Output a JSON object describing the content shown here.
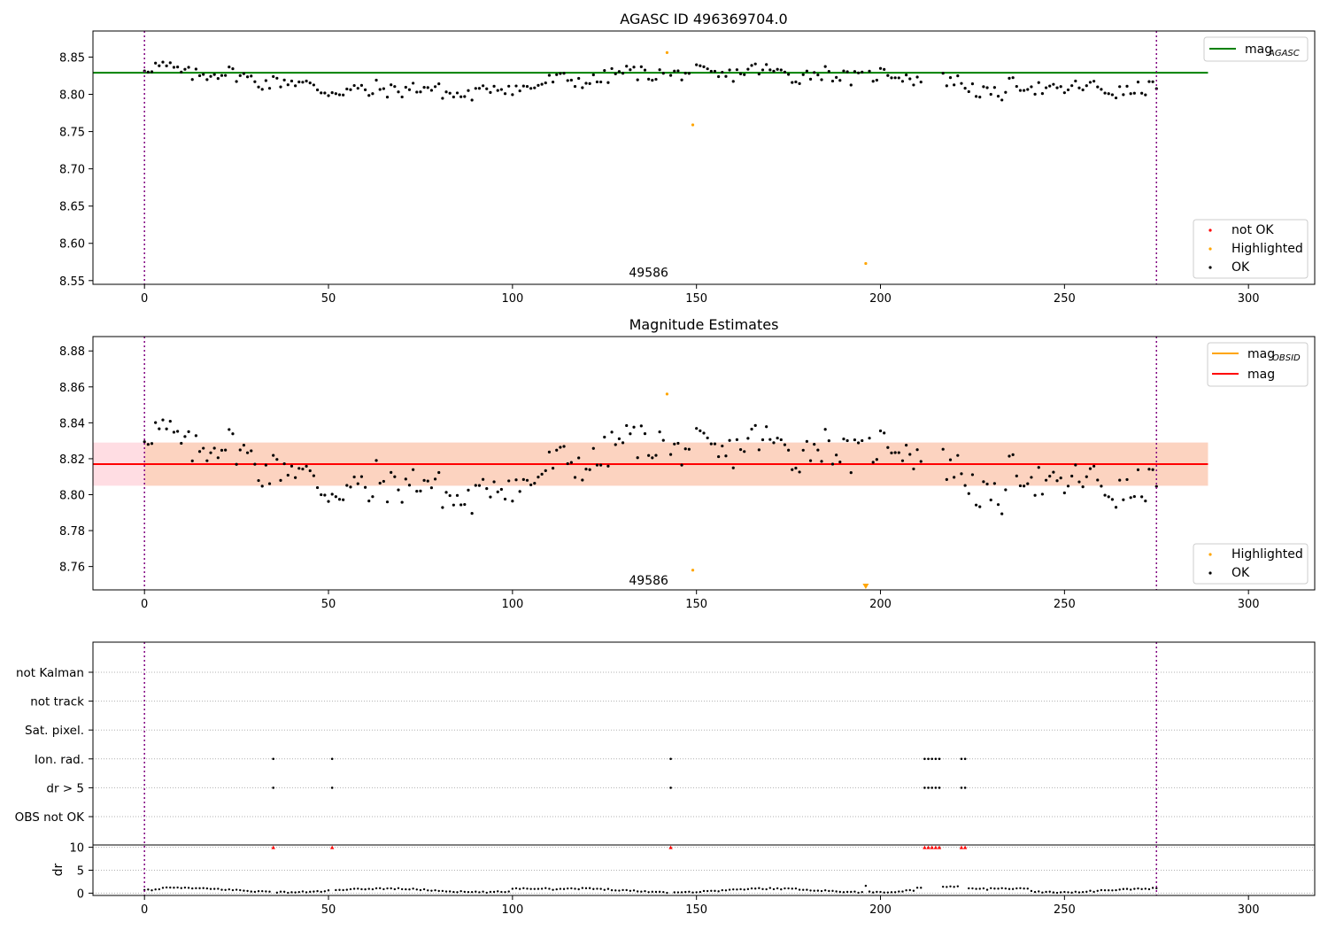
{
  "chart_data": [
    {
      "type": "scatter",
      "title": "AGASC ID 496369704.0",
      "xlim": [
        -14,
        318
      ],
      "ylim": [
        8.545,
        8.885
      ],
      "xticks": [
        0,
        50,
        100,
        150,
        200,
        250,
        300
      ],
      "yticks": [
        8.55,
        8.6,
        8.65,
        8.7,
        8.75,
        8.8,
        8.85
      ],
      "ytick_labels": [
        "8.55",
        "8.60",
        "8.65",
        "8.70",
        "8.75",
        "8.80",
        "8.85"
      ],
      "vlines": [
        0,
        275
      ],
      "annotation": {
        "text": "49586",
        "x": 137,
        "y": 8.555
      },
      "hline": {
        "name": "mag_AGASC",
        "y": 8.829,
        "x_range": [
          -14,
          289
        ],
        "color": "#008000"
      },
      "legend_top": [
        {
          "label": "mag",
          "sub": "AGASC",
          "color": "#008000"
        }
      ],
      "legend_bottom": [
        {
          "label": "not OK",
          "color": "#ff0000"
        },
        {
          "label": "Highlighted",
          "color": "#ffa500"
        },
        {
          "label": "OK",
          "color": "#000000"
        }
      ],
      "highlighted": [
        [
          142,
          8.856
        ],
        [
          149,
          8.759
        ],
        [
          196,
          8.573
        ]
      ],
      "ok_segments": [
        {
          "x0": 0,
          "x1": 30,
          "y0": 8.836,
          "y1": 8.822
        },
        {
          "x0": 31,
          "x1": 62,
          "y0": 8.82,
          "y1": 8.8
        },
        {
          "x0": 63,
          "x1": 92,
          "y0": 8.81,
          "y1": 8.8
        },
        {
          "x0": 93,
          "x1": 141,
          "y0": 8.806,
          "y1": 8.832
        },
        {
          "x0": 143,
          "x1": 175,
          "y0": 8.825,
          "y1": 8.832
        },
        {
          "x0": 176,
          "x1": 211,
          "y0": 8.826,
          "y1": 8.824
        },
        {
          "x0": 217,
          "x1": 233,
          "y0": 8.818,
          "y1": 8.8
        },
        {
          "x0": 234,
          "x1": 275,
          "y0": 8.81,
          "y1": 8.805
        }
      ]
    },
    {
      "type": "scatter",
      "title": "Magnitude Estimates",
      "xlim": [
        -14,
        318
      ],
      "ylim": [
        8.747,
        8.888
      ],
      "xticks": [
        0,
        50,
        100,
        150,
        200,
        250,
        300
      ],
      "yticks": [
        8.76,
        8.78,
        8.8,
        8.82,
        8.84,
        8.86,
        8.88
      ],
      "ytick_labels": [
        "8.76",
        "8.78",
        "8.80",
        "8.82",
        "8.84",
        "8.86",
        "8.88"
      ],
      "vlines": [
        0,
        275
      ],
      "annotation": {
        "text": "49586",
        "x": 137,
        "y": 8.75
      },
      "mag_line": {
        "y": 8.817,
        "x_range": [
          -14,
          289
        ],
        "color": "#ff0000"
      },
      "bands": [
        {
          "y0": 8.805,
          "y1": 8.829,
          "x_range": [
            -14,
            289
          ],
          "color": "#ffdde3"
        },
        {
          "y0": 8.805,
          "y1": 8.829,
          "x_range": [
            0,
            289
          ],
          "color": "#fcd3c0"
        }
      ],
      "legend_top": [
        {
          "label": "mag",
          "sub": "OBSID",
          "color": "#ffa500"
        },
        {
          "label": "mag",
          "sub": "",
          "color": "#ff0000"
        }
      ],
      "legend_bottom": [
        {
          "label": "Highlighted",
          "color": "#ffa500"
        },
        {
          "label": "OK",
          "color": "#000000"
        }
      ],
      "highlighted": [
        [
          142,
          8.856
        ],
        [
          149,
          8.758
        ]
      ],
      "lower_limit_marker": {
        "x": 196,
        "y": 8.749
      },
      "ok_segments": [
        {
          "x0": 0,
          "x1": 30,
          "y0": 8.834,
          "y1": 8.822
        },
        {
          "x0": 31,
          "x1": 62,
          "y0": 8.818,
          "y1": 8.798
        },
        {
          "x0": 63,
          "x1": 92,
          "y0": 8.81,
          "y1": 8.797
        },
        {
          "x0": 93,
          "x1": 141,
          "y0": 8.802,
          "y1": 8.834
        },
        {
          "x0": 143,
          "x1": 175,
          "y0": 8.822,
          "y1": 8.83
        },
        {
          "x0": 176,
          "x1": 211,
          "y0": 8.824,
          "y1": 8.826
        },
        {
          "x0": 217,
          "x1": 233,
          "y0": 8.815,
          "y1": 8.797
        },
        {
          "x0": 234,
          "x1": 275,
          "y0": 8.81,
          "y1": 8.802
        }
      ]
    },
    {
      "type": "scatter",
      "title": "",
      "xlim": [
        -14,
        318
      ],
      "xticks": [
        0,
        50,
        100,
        150,
        200,
        250,
        300
      ],
      "vlines": [
        0,
        275
      ],
      "flag_categories": [
        "not Kalman",
        "not track",
        "Sat. pixel.",
        "Ion. rad.",
        "dr > 5",
        "OBS not OK"
      ],
      "flag_points": {
        "Ion. rad.": [
          35,
          51,
          143,
          212,
          213,
          214,
          215,
          216,
          222,
          223
        ],
        "dr > 5": [
          35,
          51,
          143,
          212,
          213,
          214,
          215,
          216,
          222,
          223
        ]
      },
      "dr_axis": {
        "ylabel": "dr",
        "ylim": [
          -0.5,
          10.5
        ],
        "yticks": [
          0,
          5,
          10
        ],
        "ytick_labels": [
          "0",
          "5",
          "10"
        ],
        "high_x": [
          35,
          51,
          143,
          212,
          213,
          214,
          215,
          216,
          222,
          223
        ],
        "high_value": 10,
        "elevated_ranges": [
          [
            210,
            211,
            1.0
          ],
          [
            217,
            221,
            1.3
          ],
          [
            230,
            240,
            0.9
          ],
          [
            100,
            110,
            0.9
          ],
          [
            5,
            12,
            1.1
          ]
        ],
        "x_range": [
          0,
          275
        ]
      }
    }
  ]
}
